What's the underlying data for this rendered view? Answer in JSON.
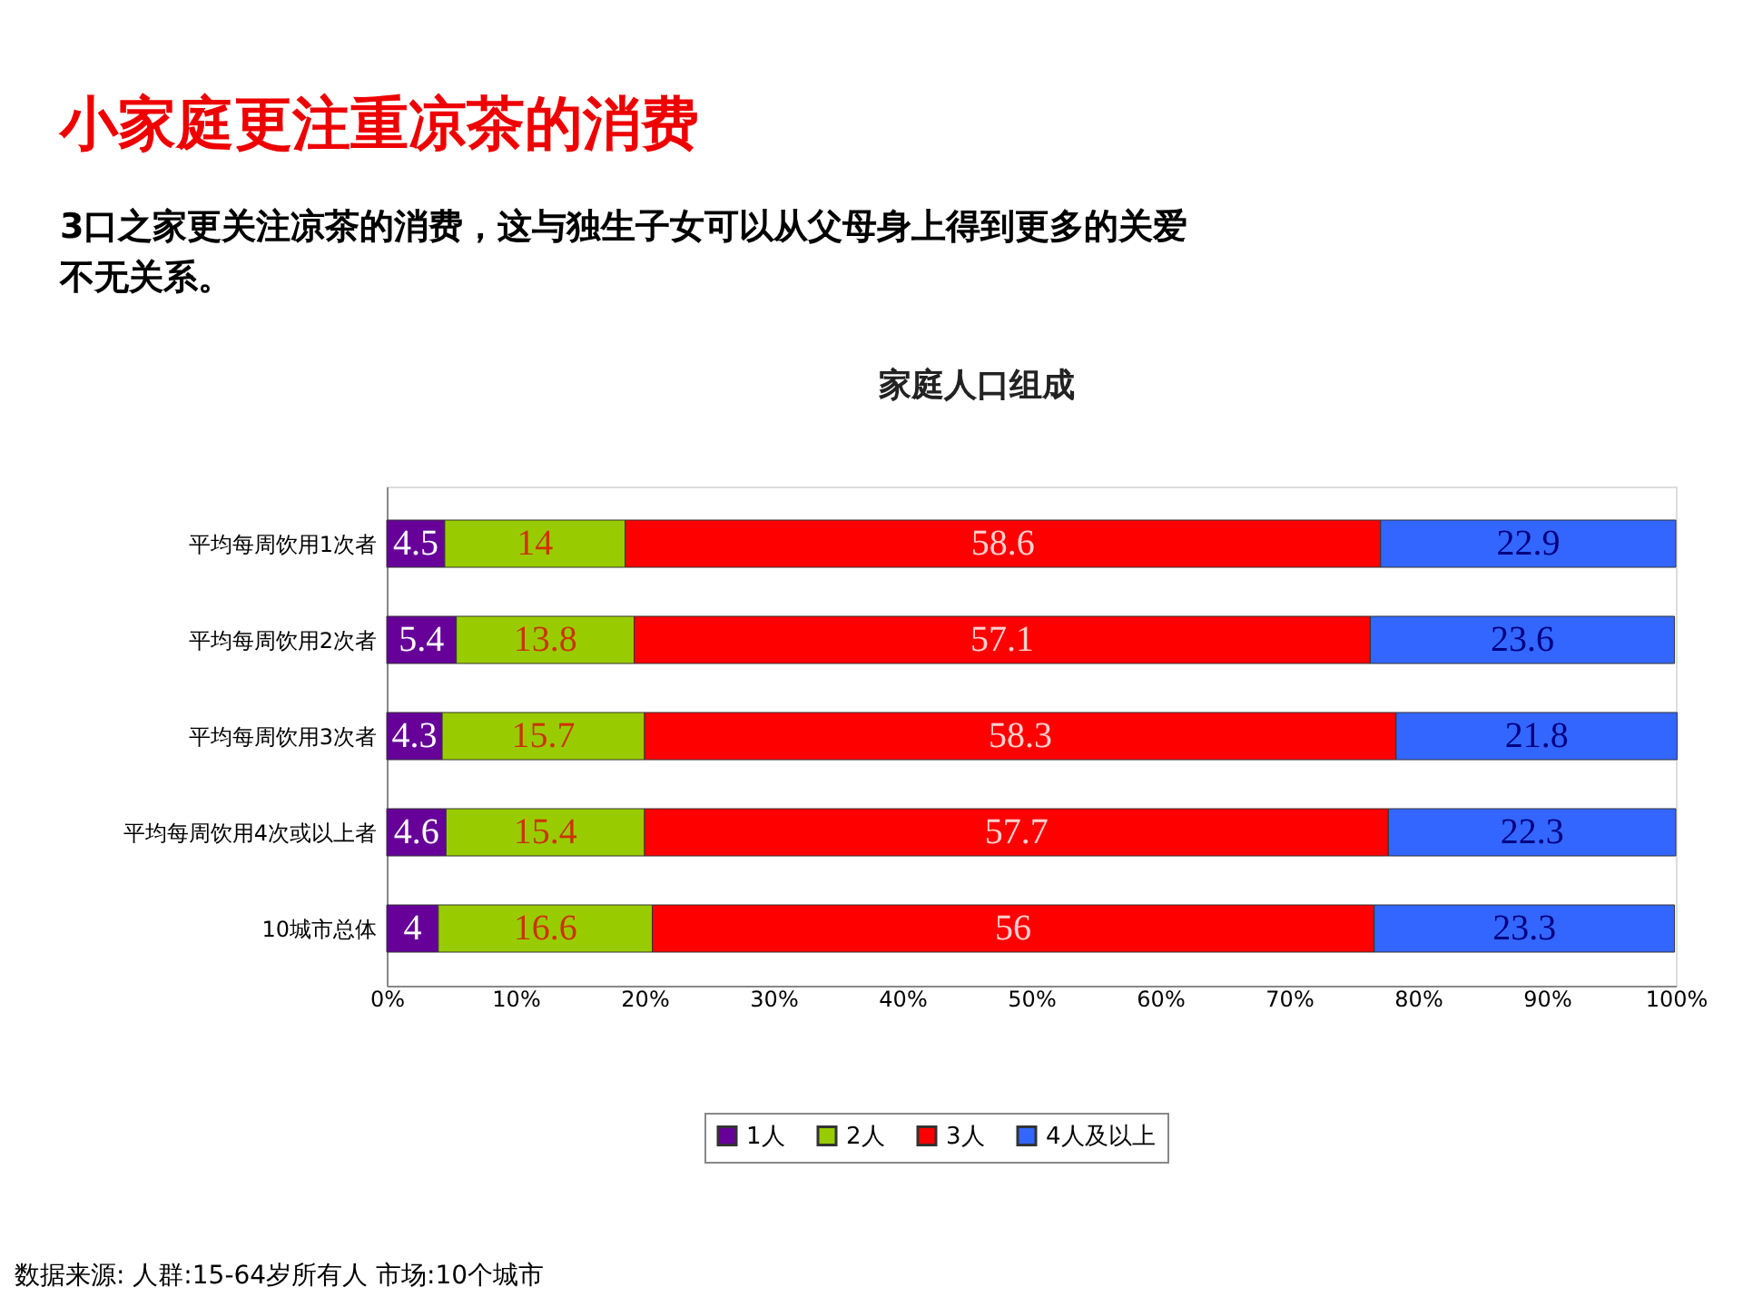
{
  "chart_data": {
    "type": "bar",
    "orientation": "horizontal",
    "stacked": true,
    "title": "小家庭更注重凉茶的消费",
    "subtitle": "3口之家更关注凉茶的消费，这与独生子女可以从父母身上得到更多的关爱不无关系。",
    "annotations": [
      "家庭人口组成",
      "数据来源: 人群:15-64岁所有人 市场:10个城市"
    ],
    "categories": [
      "平均每周饮用1次者",
      "平均每周饮用2次者",
      "平均每周饮用3次者",
      "平均每周饮用4次或以上者",
      "10城市总体"
    ],
    "series": [
      {
        "name": "1人",
        "color": "#660099",
        "values": [
          4.5,
          5.4,
          4.3,
          4.6,
          4
        ]
      },
      {
        "name": "2人",
        "color": "#99cc00",
        "values": [
          14,
          13.8,
          15.7,
          15.4,
          16.6
        ]
      },
      {
        "name": "3人",
        "color": "#ff0000",
        "values": [
          58.6,
          57.1,
          58.3,
          57.7,
          56
        ]
      },
      {
        "name": "4人及以上",
        "color": "#3366ff",
        "values": [
          22.9,
          23.6,
          21.8,
          22.3,
          23.3
        ]
      }
    ],
    "xlim": [
      0,
      100
    ],
    "xticks": [
      {
        "value": 0,
        "label": "0%"
      },
      {
        "value": 10,
        "label": "10%"
      },
      {
        "value": 20,
        "label": "20%"
      },
      {
        "value": 30,
        "label": "30%"
      },
      {
        "value": 40,
        "label": "40%"
      },
      {
        "value": 50,
        "label": "50%"
      },
      {
        "value": 60,
        "label": "60%"
      },
      {
        "value": 70,
        "label": "70%"
      },
      {
        "value": 80,
        "label": "80%"
      },
      {
        "value": 90,
        "label": "90%"
      },
      {
        "value": 100,
        "label": "100%"
      }
    ],
    "data_labels": true,
    "legend": "bottom",
    "grid": false
  }
}
